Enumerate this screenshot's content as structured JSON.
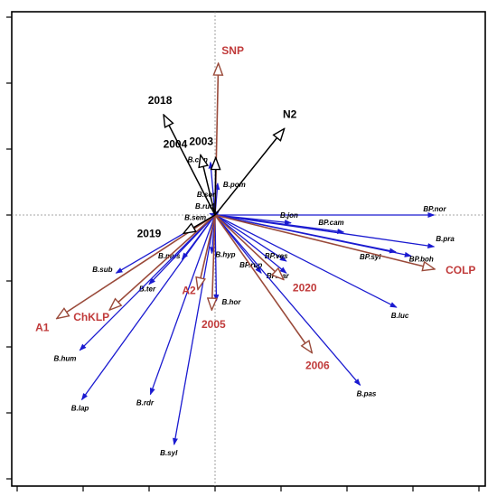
{
  "chart_data": {
    "type": "scatter",
    "subtype": "ordination-biplot",
    "title": "",
    "xlabel": "",
    "ylabel": "",
    "xlim": [
      -3.2,
      4.2
    ],
    "ylim": [
      -4.3,
      3.2
    ],
    "tick_step": 1,
    "grid": false,
    "origin_lines": "dotted",
    "colors": {
      "species_arrow": "#1a1ad0",
      "env_arrow": "#9a4a3a",
      "env_label": "#c03a3a",
      "period_arrow": "#000000",
      "period_label": "#000000"
    },
    "species": [
      {
        "name": "BP.nor",
        "x": 3.32,
        "y": 0.0
      },
      {
        "name": "B.pra",
        "x": 3.32,
        "y": -0.48
      },
      {
        "name": "BP.boh",
        "x": 2.97,
        "y": -0.62
      },
      {
        "name": "BP.syl",
        "x": 2.74,
        "y": -0.56
      },
      {
        "name": "BP.cam",
        "x": 1.95,
        "y": -0.26
      },
      {
        "name": "B.jon",
        "x": 1.15,
        "y": -0.12
      },
      {
        "name": "BP.ves",
        "x": 1.08,
        "y": -0.7
      },
      {
        "name": "BP.bar",
        "x": 1.08,
        "y": -0.88
      },
      {
        "name": "BP.rup",
        "x": 0.7,
        "y": -0.88
      },
      {
        "name": "B.luc",
        "x": 2.75,
        "y": -1.4
      },
      {
        "name": "B.pas",
        "x": 2.2,
        "y": -2.58
      },
      {
        "name": "B.hor",
        "x": 0.02,
        "y": -1.3
      },
      {
        "name": "B.hyp",
        "x": -0.05,
        "y": -0.58
      },
      {
        "name": "B.mus",
        "x": -0.5,
        "y": -0.67
      },
      {
        "name": "B.ter",
        "x": -1.0,
        "y": -1.05
      },
      {
        "name": "B.sub",
        "x": -1.5,
        "y": -0.88
      },
      {
        "name": "B.hum",
        "x": -2.05,
        "y": -2.05
      },
      {
        "name": "B.lap",
        "x": -2.02,
        "y": -2.8
      },
      {
        "name": "B.rdr",
        "x": -0.98,
        "y": -2.72
      },
      {
        "name": "B.syl",
        "x": -0.62,
        "y": -3.48
      },
      {
        "name": "B.con",
        "x": -0.07,
        "y": 0.8
      },
      {
        "name": "B.pom",
        "x": 0.04,
        "y": 0.48
      },
      {
        "name": "B.sor",
        "x": 0.06,
        "y": 0.07
      },
      {
        "name": "B.rud",
        "x": 0.04,
        "y": 0.03
      },
      {
        "name": "B.sem",
        "x": -0.08,
        "y": 0.02
      }
    ],
    "environment": [
      {
        "name": "SNP",
        "x": 0.05,
        "y": 2.3
      },
      {
        "name": "COLP",
        "x": 3.33,
        "y": -0.82
      },
      {
        "name": "2020",
        "x": 1.04,
        "y": -0.98
      },
      {
        "name": "2006",
        "x": 1.47,
        "y": -2.09
      },
      {
        "name": "2005",
        "x": -0.05,
        "y": -1.44
      },
      {
        "name": "A2",
        "x": -0.26,
        "y": -1.13
      },
      {
        "name": "ChKLP",
        "x": -1.6,
        "y": -1.44
      },
      {
        "name": "A1",
        "x": -2.4,
        "y": -1.57
      }
    ],
    "periods": [
      {
        "name": "2018",
        "x": -0.78,
        "y": 1.52
      },
      {
        "name": "2004",
        "x": -0.22,
        "y": 0.91
      },
      {
        "name": "2003",
        "x": 0.01,
        "y": 0.87
      },
      {
        "name": "N2",
        "x": 1.05,
        "y": 1.31
      },
      {
        "name": "2019",
        "x": -0.48,
        "y": -0.28
      }
    ]
  }
}
